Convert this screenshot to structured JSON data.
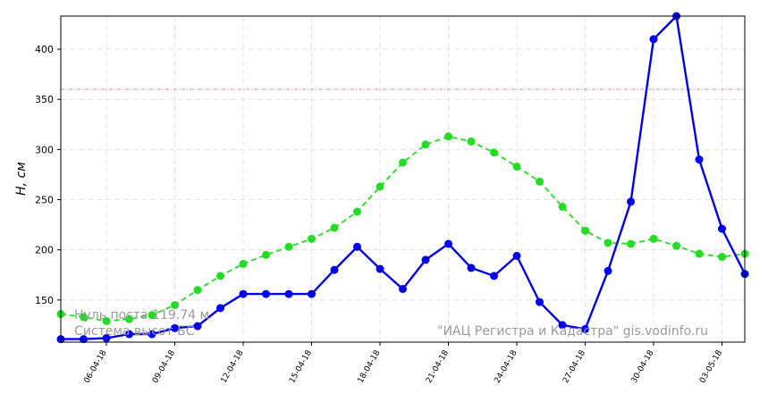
{
  "chart_data": {
    "type": "line",
    "ylabel": "H, см",
    "xlabel": "",
    "title": "",
    "ylim": [
      108,
      433
    ],
    "yticks": [
      150,
      200,
      250,
      300,
      350,
      400
    ],
    "grid": true,
    "x": [
      "04-04-18",
      "05-04-18",
      "06-04-18",
      "07-04-18",
      "08-04-18",
      "09-04-18",
      "10-04-18",
      "11-04-18",
      "12-04-18",
      "13-04-18",
      "14-04-18",
      "15-04-18",
      "16-04-18",
      "17-04-18",
      "18-04-18",
      "19-04-18",
      "20-04-18",
      "21-04-18",
      "22-04-18",
      "23-04-18",
      "24-04-18",
      "25-04-18",
      "26-04-18",
      "27-04-18",
      "28-04-18",
      "29-04-18",
      "30-04-18",
      "01-05-18",
      "02-05-18",
      "03-05-18",
      "04-05-18"
    ],
    "xtick_labels": [
      "06-04-18",
      "09-04-18",
      "12-04-18",
      "15-04-18",
      "18-04-18",
      "21-04-18",
      "24-04-18",
      "27-04-18",
      "30-04-18",
      "03-05-18"
    ],
    "reference_line": {
      "value": 360,
      "color": "#e06666"
    },
    "series": [
      {
        "color": "#0000ee",
        "style": "solid",
        "values": [
          111,
          111,
          112,
          116,
          116,
          122,
          124,
          142,
          156,
          156,
          156,
          156,
          180,
          203,
          181,
          161,
          190,
          206,
          182,
          174,
          194,
          148,
          125,
          121,
          179,
          248,
          410,
          433,
          290,
          221,
          176
        ]
      },
      {
        "color": "#22dd22",
        "style": "dashed",
        "values": [
          136,
          133,
          129,
          131,
          135,
          145,
          160,
          174,
          186,
          195,
          203,
          211,
          222,
          238,
          263,
          287,
          305,
          313,
          308,
          297,
          283,
          268,
          243,
          219,
          207,
          206,
          211,
          204,
          196,
          193,
          196
        ]
      }
    ]
  },
  "watermark": {
    "line1": "Нуль поста 119.74 м",
    "line2": "Система высот БС",
    "source": "\"ИАЦ Регистра и Кадастра\"   gis.vodinfo.ru"
  }
}
